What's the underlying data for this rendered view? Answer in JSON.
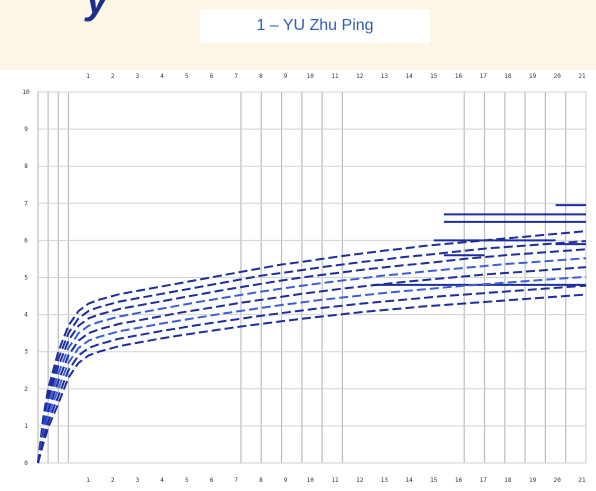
{
  "page": {
    "brand_fragment": "y"
  },
  "chart_data": {
    "type": "line",
    "title": "1 – YU  Zhu Ping",
    "xlabel": "",
    "ylabel": "",
    "grid": true,
    "legend": "none",
    "x_tick_labels": [
      "1",
      "2",
      "3",
      "4",
      "5",
      "6",
      "7",
      "8",
      "9",
      "10",
      "11",
      "12",
      "13",
      "14",
      "15",
      "16",
      "17",
      "18",
      "19",
      "20",
      "21"
    ],
    "y_tick_labels": [
      "0",
      "1",
      "2",
      "3",
      "4",
      "5",
      "6",
      "7",
      "8",
      "9",
      "10"
    ],
    "x": [
      0,
      0.25,
      0.5,
      1,
      1.5,
      2,
      2.5,
      3,
      4,
      5,
      6,
      7,
      8,
      9,
      10,
      11,
      12,
      13,
      14,
      15,
      16,
      17,
      18,
      19,
      20,
      21,
      22,
      23,
      24,
      25,
      26,
      27
    ],
    "series": [
      {
        "color": "#1c2e9e",
        "values": [
          0,
          1.2,
          2.0,
          3.0,
          3.7,
          4.1,
          4.3,
          4.4,
          4.55,
          4.65,
          4.75,
          4.85,
          4.95,
          5.05,
          5.15,
          5.25,
          5.35,
          5.42,
          5.5,
          5.58,
          5.65,
          5.72,
          5.78,
          5.85,
          5.9,
          5.95,
          6.0,
          6.05,
          6.1,
          6.15,
          6.2,
          6.25
        ]
      },
      {
        "color": "#1c2e9e",
        "values": [
          0,
          1.1,
          1.85,
          2.8,
          3.5,
          3.9,
          4.1,
          4.2,
          4.35,
          4.45,
          4.55,
          4.65,
          4.75,
          4.85,
          4.95,
          5.05,
          5.12,
          5.2,
          5.28,
          5.35,
          5.42,
          5.48,
          5.55,
          5.6,
          5.66,
          5.72,
          5.78,
          5.82,
          5.86,
          5.9,
          5.94,
          5.98
        ]
      },
      {
        "color": "#1c2e9e",
        "values": [
          0,
          1.0,
          1.7,
          2.6,
          3.3,
          3.7,
          3.9,
          4.0,
          4.15,
          4.25,
          4.35,
          4.45,
          4.55,
          4.65,
          4.74,
          4.83,
          4.92,
          5.0,
          5.07,
          5.14,
          5.21,
          5.27,
          5.33,
          5.38,
          5.44,
          5.5,
          5.55,
          5.6,
          5.64,
          5.68,
          5.72,
          5.76
        ]
      },
      {
        "color": "#3a5fd8",
        "values": [
          0,
          0.9,
          1.55,
          2.4,
          3.1,
          3.5,
          3.7,
          3.8,
          3.95,
          4.05,
          4.15,
          4.25,
          4.35,
          4.44,
          4.53,
          4.62,
          4.7,
          4.78,
          4.85,
          4.92,
          4.98,
          5.05,
          5.1,
          5.16,
          5.21,
          5.26,
          5.31,
          5.36,
          5.4,
          5.44,
          5.48,
          5.52
        ]
      },
      {
        "color": "#1c2e9e",
        "values": [
          0,
          0.8,
          1.4,
          2.2,
          2.9,
          3.3,
          3.5,
          3.6,
          3.75,
          3.85,
          3.95,
          4.05,
          4.14,
          4.23,
          4.32,
          4.4,
          4.48,
          4.56,
          4.63,
          4.7,
          4.76,
          4.82,
          4.88,
          4.93,
          4.98,
          5.03,
          5.08,
          5.12,
          5.16,
          5.2,
          5.24,
          5.28
        ]
      },
      {
        "color": "#3a5fd8",
        "values": [
          0,
          0.7,
          1.25,
          2.0,
          2.7,
          3.1,
          3.3,
          3.4,
          3.55,
          3.65,
          3.75,
          3.84,
          3.93,
          4.02,
          4.1,
          4.18,
          4.26,
          4.33,
          4.4,
          4.46,
          4.52,
          4.58,
          4.63,
          4.68,
          4.73,
          4.78,
          4.82,
          4.86,
          4.9,
          4.94,
          4.98,
          5.02
        ]
      },
      {
        "color": "#1c2e9e",
        "values": [
          0,
          0.6,
          1.1,
          1.8,
          2.5,
          2.9,
          3.1,
          3.2,
          3.35,
          3.45,
          3.55,
          3.64,
          3.73,
          3.81,
          3.89,
          3.97,
          4.04,
          4.11,
          4.18,
          4.24,
          4.3,
          4.35,
          4.4,
          4.45,
          4.5,
          4.54,
          4.58,
          4.62,
          4.66,
          4.7,
          4.74,
          4.78
        ]
      },
      {
        "color": "#1c2e9e",
        "values": [
          0,
          0.5,
          0.95,
          1.6,
          2.3,
          2.7,
          2.9,
          3.0,
          3.15,
          3.25,
          3.35,
          3.44,
          3.52,
          3.6,
          3.68,
          3.75,
          3.82,
          3.89,
          3.95,
          4.01,
          4.07,
          4.12,
          4.17,
          4.22,
          4.26,
          4.3,
          4.34,
          4.38,
          4.42,
          4.46,
          4.5,
          4.54
        ]
      }
    ],
    "steps": [
      {
        "x_start": 16.5,
        "x_end": 27.0,
        "value": 4.8
      },
      {
        "x_start": 20.0,
        "x_end": 27.0,
        "value": 6.7
      },
      {
        "x_start": 20.0,
        "x_end": 27.0,
        "value": 6.5
      },
      {
        "x_start": 19.5,
        "x_end": 25.5,
        "value": 6.0
      },
      {
        "x_start": 20.0,
        "x_end": 22.0,
        "value": 5.6
      },
      {
        "x_start": 25.5,
        "x_end": 27.0,
        "value": 6.95
      },
      {
        "x_start": 25.5,
        "x_end": 27.0,
        "value": 5.9
      }
    ]
  }
}
